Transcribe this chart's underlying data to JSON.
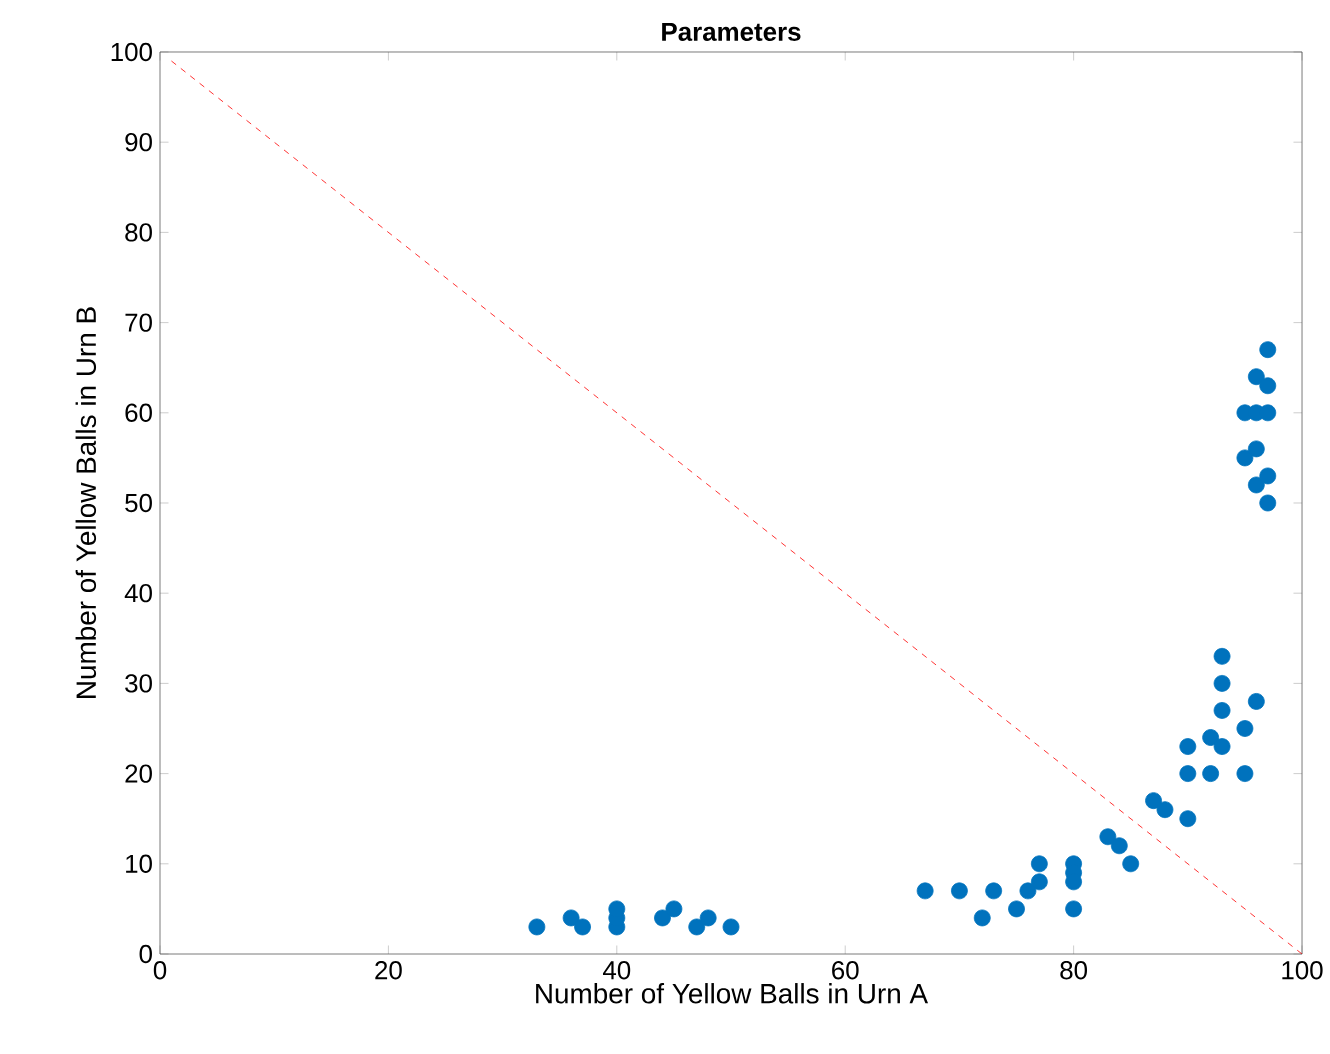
{
  "chart_data": {
    "type": "scatter",
    "title": "Parameters",
    "xlabel": "Number of Yellow Balls in Urn A",
    "ylabel": "Number of Yellow Balls in Urn B",
    "xlim": [
      0,
      100
    ],
    "ylim": [
      0,
      100
    ],
    "xticks": [
      0,
      20,
      40,
      60,
      80,
      100
    ],
    "yticks": [
      0,
      10,
      20,
      30,
      40,
      50,
      60,
      70,
      80,
      90,
      100
    ],
    "grid": false,
    "series": [
      {
        "color": "#0072bd",
        "marker": "circle",
        "x": [
          33,
          36,
          37,
          40,
          40,
          40,
          44,
          45,
          47,
          48,
          50,
          67,
          70,
          72,
          73,
          75,
          76,
          77,
          77,
          80,
          80,
          80,
          80,
          83,
          84,
          85,
          87,
          88,
          90,
          90,
          90,
          92,
          92,
          93,
          93,
          93,
          93,
          95,
          95,
          96,
          97,
          96,
          97,
          95,
          96,
          97,
          95,
          96,
          96,
          97,
          97
        ],
        "values": [
          3,
          4,
          3,
          3,
          4,
          5,
          4,
          5,
          3,
          4,
          3,
          7,
          7,
          4,
          7,
          5,
          7,
          8,
          10,
          10,
          9,
          8,
          5,
          13,
          12,
          10,
          17,
          16,
          23,
          20,
          15,
          24,
          20,
          33,
          30,
          27,
          23,
          25,
          20,
          28,
          67,
          64,
          63,
          60,
          60,
          60,
          55,
          56,
          52,
          53,
          50
        ]
      },
      {
        "type": "line",
        "color": "#ff0000",
        "marker": "none",
        "line_style": "dashed",
        "x": [
          1,
          100
        ],
        "values": [
          99,
          0
        ]
      }
    ]
  }
}
